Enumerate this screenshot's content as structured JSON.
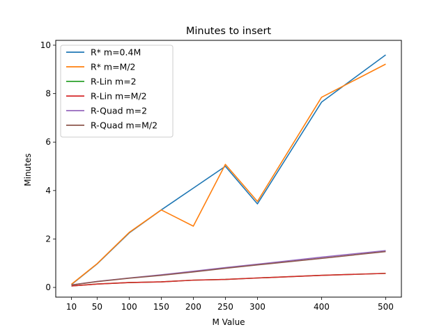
{
  "chart_data": {
    "type": "line",
    "title": "Minutes to insert",
    "xlabel": "M Value",
    "ylabel": "Minutes",
    "x": [
      10,
      50,
      100,
      150,
      200,
      250,
      300,
      400,
      500
    ],
    "xticks": [
      "10",
      "50",
      "100",
      "150",
      "200",
      "250",
      "300",
      "400",
      "500"
    ],
    "yticks": [
      "0",
      "2",
      "4",
      "6",
      "8",
      "10"
    ],
    "xlim": [
      -14.5,
      524.5
    ],
    "ylim": [
      -0.4,
      10.2
    ],
    "grid": false,
    "legend_position": "upper-left",
    "series": [
      {
        "name": "R* m=0.4M",
        "color": "#1f77b4",
        "values": [
          0.12,
          0.97,
          2.25,
          3.2,
          4.1,
          5.0,
          3.45,
          7.65,
          9.6
        ]
      },
      {
        "name": "R* m=M/2",
        "color": "#ff7f0e",
        "values": [
          0.13,
          0.98,
          2.27,
          3.2,
          2.53,
          5.08,
          3.55,
          7.85,
          9.22
        ]
      },
      {
        "name": "R-Lin m=2",
        "color": "#2ca02c",
        "values": [
          0.06,
          0.14,
          0.2,
          0.23,
          0.3,
          0.33,
          0.39,
          0.5,
          0.58
        ]
      },
      {
        "name": "R-Lin m=M/2",
        "color": "#d62728",
        "values": [
          0.06,
          0.14,
          0.2,
          0.23,
          0.3,
          0.33,
          0.39,
          0.5,
          0.58
        ]
      },
      {
        "name": "R-Quad m=2",
        "color": "#9467bd",
        "values": [
          0.1,
          0.25,
          0.39,
          0.52,
          0.67,
          0.82,
          0.96,
          1.25,
          1.52
        ]
      },
      {
        "name": "R-Quad m=M/2",
        "color": "#8c564b",
        "values": [
          0.1,
          0.24,
          0.38,
          0.5,
          0.64,
          0.79,
          0.93,
          1.2,
          1.48
        ]
      }
    ]
  }
}
